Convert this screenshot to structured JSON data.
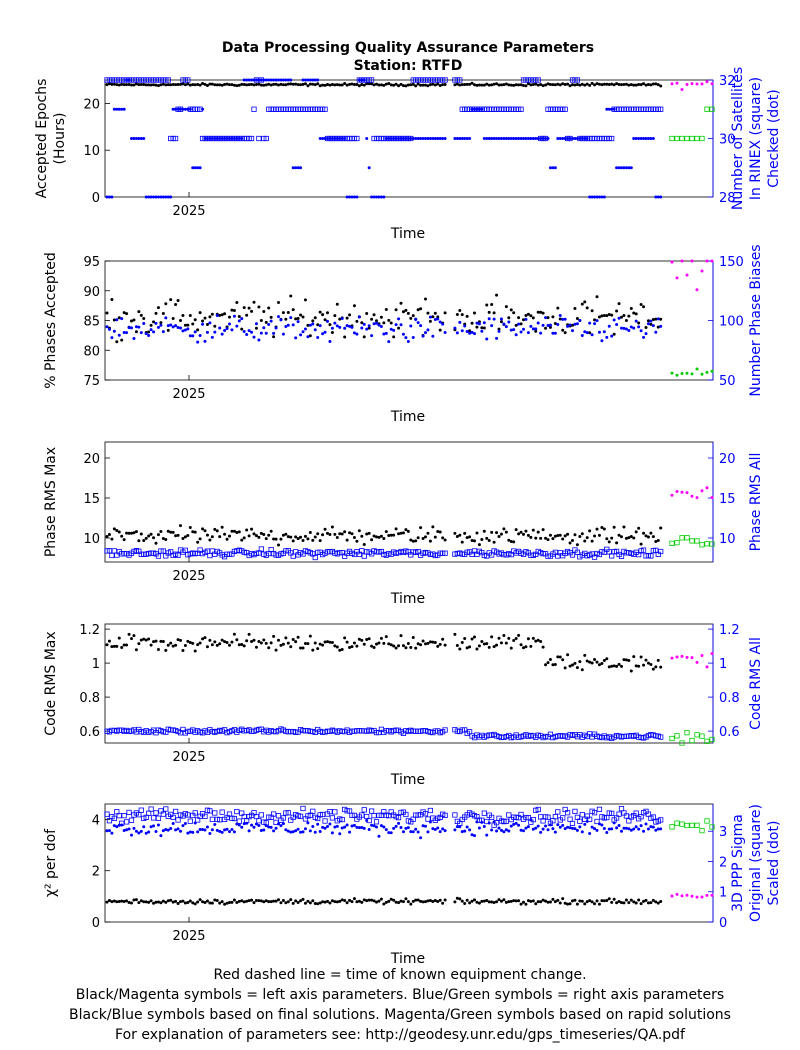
{
  "page": {
    "title": "Data Processing Quality Assurance Parameters",
    "subtitle": "Station: RTFD",
    "colors": {
      "left_final": "#000000",
      "right_final": "#0000ff",
      "left_rapid": "#ff00ff",
      "right_rapid": "#00cc00"
    },
    "footnotes": [
      "Red dashed line = time of known equipment change.",
      "Black/Magenta symbols = left axis parameters. Blue/Green symbols = right axis parameters",
      "Black/Blue symbols based on final solutions.  Magenta/Green symbols based on rapid solutions",
      "For explanation of parameters see: http://geodesy.unr.edu/gps_timeseries/QA.pdf"
    ]
  },
  "chart_data": [
    {
      "type": "scatter",
      "xlabel": "Time",
      "x_tick_label": "2025",
      "ylabel_left": [
        "Accepted Epochs",
        "(Hours)"
      ],
      "ylabel_right": [
        "Number of Satellites",
        "In RINEX (square)",
        "Checked (dot)"
      ],
      "ylim_left": [
        0,
        25
      ],
      "yticks_left": [
        0,
        10,
        20
      ],
      "ylim_right": [
        28,
        32
      ],
      "yticks_right": [
        28,
        30,
        32
      ],
      "series": [
        {
          "axis": "left",
          "marker": "dot",
          "solution": "final",
          "typical": 24,
          "spread": 0.2
        },
        {
          "axis": "right",
          "marker": "square",
          "solution": "final",
          "levels": [
            30,
            31,
            32
          ]
        },
        {
          "axis": "right",
          "marker": "dot",
          "solution": "final",
          "levels": [
            28,
            29,
            30,
            31,
            32
          ]
        },
        {
          "axis": "left",
          "marker": "dot",
          "solution": "rapid",
          "typical": 24
        },
        {
          "axis": "right",
          "marker": "square",
          "solution": "rapid",
          "levels": [
            30,
            31
          ]
        }
      ]
    },
    {
      "type": "scatter",
      "xlabel": "Time",
      "x_tick_label": "2025",
      "ylabel_left": [
        "% Phases Accepted"
      ],
      "ylabel_right": [
        "Number Phase Biases"
      ],
      "ylim_left": [
        75,
        95
      ],
      "yticks_left": [
        75,
        80,
        85,
        90,
        95
      ],
      "ylim_right": [
        50,
        150
      ],
      "yticks_right": [
        50,
        100,
        150
      ],
      "series": [
        {
          "axis": "left",
          "marker": "dot",
          "solution": "final",
          "typical": 85.5,
          "spread": 2.6
        },
        {
          "axis": "right",
          "marker": "dot",
          "solution": "final",
          "typical": 93,
          "spread": 9
        },
        {
          "axis": "left",
          "marker": "dot",
          "solution": "rapid",
          "typical": 93.8
        },
        {
          "axis": "right",
          "marker": "dot",
          "solution": "rapid",
          "typical": 56
        }
      ]
    },
    {
      "type": "scatter",
      "xlabel": "Time",
      "x_tick_label": "2025",
      "ylabel_left": [
        "Phase RMS Max"
      ],
      "ylabel_right": [
        "Phase RMS All"
      ],
      "ylim_left": [
        7,
        22
      ],
      "yticks_left": [
        10,
        15,
        20
      ],
      "ylim_right": [
        7,
        22
      ],
      "yticks_right": [
        10,
        15,
        20
      ],
      "series": [
        {
          "axis": "left",
          "marker": "dot",
          "solution": "final",
          "typical": 10.3,
          "spread": 0.9
        },
        {
          "axis": "right",
          "marker": "square",
          "solution": "final",
          "typical": 8.1,
          "spread": 0.35
        },
        {
          "axis": "left",
          "marker": "dot",
          "solution": "rapid",
          "typical": 15.5
        },
        {
          "axis": "right",
          "marker": "square",
          "solution": "rapid",
          "typical": 9.5
        }
      ]
    },
    {
      "type": "scatter",
      "xlabel": "Time",
      "x_tick_label": "2025",
      "ylabel_left": [
        "Code RMS Max"
      ],
      "ylabel_right": [
        "Code RMS All"
      ],
      "ylim_left": [
        0.53,
        1.23
      ],
      "yticks_left": [
        0.6,
        0.8,
        1,
        1.2
      ],
      "ylim_right": [
        0.53,
        1.23
      ],
      "yticks_right": [
        0.6,
        0.8,
        1,
        1.2
      ],
      "series": [
        {
          "axis": "left",
          "marker": "dot",
          "solution": "final",
          "typical": 1.12,
          "spread": 0.04
        },
        {
          "axis": "right",
          "marker": "square",
          "solution": "final",
          "typical": 0.6,
          "spread": 0.01
        },
        {
          "axis": "left",
          "marker": "dot",
          "solution": "rapid",
          "typical": 1.02
        },
        {
          "axis": "right",
          "marker": "square",
          "solution": "rapid",
          "typical": 0.56
        }
      ]
    },
    {
      "type": "scatter",
      "xlabel": "Time",
      "x_tick_label": "2025",
      "ylabel_left": [
        "χ² per dof"
      ],
      "ylabel_right": [
        "3D PPP Sigma",
        "Original (square)",
        "Scaled (dot)"
      ],
      "ylim_left": [
        0,
        4.6
      ],
      "yticks_left": [
        0,
        2,
        4
      ],
      "ylim_right": [
        0,
        3.9
      ],
      "yticks_right": [
        0,
        1,
        2,
        3
      ],
      "series": [
        {
          "axis": "left",
          "marker": "dot",
          "solution": "final",
          "typical": 0.8,
          "spread": 0.08
        },
        {
          "axis": "right",
          "marker": "square",
          "solution": "final",
          "typical": 3.5,
          "spread": 0.2
        },
        {
          "axis": "right",
          "marker": "dot",
          "solution": "final",
          "typical": 3.1,
          "spread": 0.2
        },
        {
          "axis": "left",
          "marker": "dot",
          "solution": "rapid",
          "typical": 1.0
        },
        {
          "axis": "right",
          "marker": "square",
          "solution": "rapid",
          "typical": 3.15
        }
      ]
    }
  ]
}
